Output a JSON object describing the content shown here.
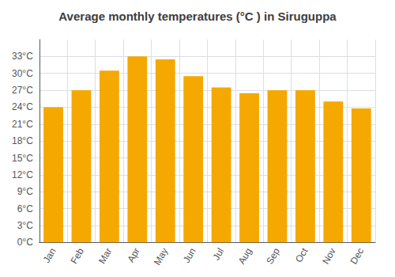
{
  "chart_data": {
    "type": "bar",
    "title": "Average monthly temperatures (°C ) in Siruguppa",
    "categories": [
      "Jan",
      "Feb",
      "Mar",
      "Apr",
      "May",
      "Jun",
      "Jul",
      "Aug",
      "Sep",
      "Oct",
      "Nov",
      "Dec"
    ],
    "values": [
      24.0,
      27.0,
      30.5,
      33.0,
      32.5,
      29.5,
      27.5,
      26.5,
      27.0,
      27.0,
      25.0,
      23.8
    ],
    "color": "#F5A800",
    "ylim": [
      0,
      36
    ],
    "yticks": [
      {
        "value": 0,
        "label": "0°C"
      },
      {
        "value": 3,
        "label": "3°C"
      },
      {
        "value": 6,
        "label": "6°C"
      },
      {
        "value": 9,
        "label": "9°C"
      },
      {
        "value": 12,
        "label": "12°C"
      },
      {
        "value": 15,
        "label": "15°C"
      },
      {
        "value": 18,
        "label": "18°C"
      },
      {
        "value": 21,
        "label": "21°C"
      },
      {
        "value": 24,
        "label": "24°C"
      },
      {
        "value": 27,
        "label": "27°C"
      },
      {
        "value": 30,
        "label": "30°C"
      },
      {
        "value": 33,
        "label": "33°C"
      }
    ],
    "grid": true
  }
}
